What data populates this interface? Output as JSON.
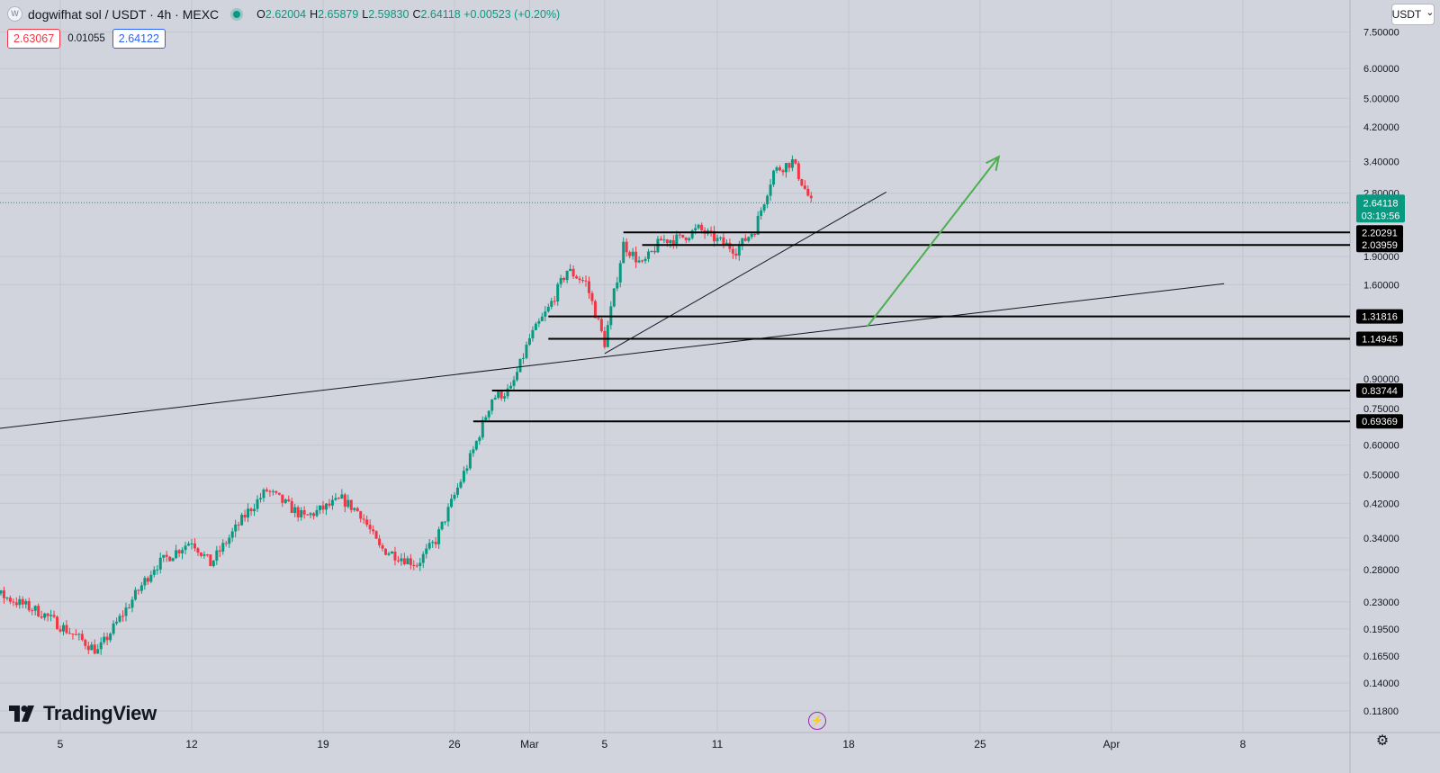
{
  "header": {
    "symbol_icon": "W",
    "title": "dogwifhat sol / USDT · 4h · MEXC",
    "ohlc": [
      {
        "key": "O",
        "value": "2.62004"
      },
      {
        "key": "H",
        "value": "2.65879"
      },
      {
        "key": "L",
        "value": "2.59830"
      },
      {
        "key": "C",
        "value": "2.64118 +0.00523 (+0.20%)"
      }
    ],
    "sell_price": "2.63067",
    "spread": "0.01055",
    "buy_price": "2.64122",
    "currency": "USDT",
    "live_color": "#089981"
  },
  "brand": {
    "name": "TradingView"
  },
  "icons": {
    "bolt": "⚡",
    "gear": "⚙",
    "chevron": "⌄"
  },
  "colors": {
    "up": "#089981",
    "down": "#f23645",
    "background": "#d1d4dc",
    "arrow": "#4caf50"
  },
  "chart_data": {
    "type": "candlestick",
    "scale": "log",
    "interval": "4h",
    "x_axis_labels": [
      {
        "label": "5",
        "date": "2024-02-05"
      },
      {
        "label": "12",
        "date": "2024-02-12"
      },
      {
        "label": "19",
        "date": "2024-02-19"
      },
      {
        "label": "26",
        "date": "2024-02-26"
      },
      {
        "label": "Mar",
        "date": "2024-03-01"
      },
      {
        "label": "5",
        "date": "2024-03-05"
      },
      {
        "label": "11",
        "date": "2024-03-11"
      },
      {
        "label": "18",
        "date": "2024-03-18"
      },
      {
        "label": "25",
        "date": "2024-03-25"
      },
      {
        "label": "Apr",
        "date": "2024-04-01"
      },
      {
        "label": "8",
        "date": "2024-04-08"
      }
    ],
    "y_axis_labels": [
      "7.50000",
      "6.00000",
      "5.00000",
      "4.20000",
      "3.40000",
      "2.80000",
      "1.90000",
      "1.60000",
      "0.90000",
      "0.75000",
      "0.60000",
      "0.50000",
      "0.42000",
      "0.34000",
      "0.28000",
      "0.23000",
      "0.19500",
      "0.16500",
      "0.14000",
      "0.11800"
    ],
    "current_price": {
      "value": 2.64118,
      "label": "2.64118",
      "countdown": "03:19:56"
    },
    "horizontal_levels": [
      {
        "value": 2.20291,
        "label": "2.20291",
        "from": "2024-03-06"
      },
      {
        "value": 2.03959,
        "label": "2.03959",
        "from": "2024-03-07"
      },
      {
        "value": 1.31816,
        "label": "1.31816",
        "from": "2024-03-02"
      },
      {
        "value": 1.14945,
        "label": "1.14945",
        "from": "2024-03-02"
      },
      {
        "value": 0.83744,
        "label": "0.83744",
        "from": "2024-02-28"
      },
      {
        "value": 0.69369,
        "label": "0.69369",
        "from": "2024-02-27"
      }
    ],
    "trendlines": [
      {
        "p1": {
          "date": "2024-01-30",
          "price": 0.64
        },
        "p2": {
          "date": "2024-04-07",
          "price": 1.61
        }
      },
      {
        "p1": {
          "date": "2024-03-05",
          "price": 1.05
        },
        "p2": {
          "date": "2024-03-20",
          "price": 2.82
        }
      }
    ],
    "arrow": {
      "from": {
        "date": "2024-03-19",
        "price": 1.24
      },
      "to": {
        "date": "2024-03-26",
        "price": 3.5
      }
    },
    "price_path": [
      {
        "date": "2024-01-30",
        "price": 0.245
      },
      {
        "date": "2024-02-01",
        "price": 0.25
      },
      {
        "date": "2024-02-04",
        "price": 0.215
      },
      {
        "date": "2024-02-07",
        "price": 0.17
      },
      {
        "date": "2024-02-10",
        "price": 0.285
      },
      {
        "date": "2024-02-12",
        "price": 0.335
      },
      {
        "date": "2024-02-13",
        "price": 0.29
      },
      {
        "date": "2024-02-15",
        "price": 0.4
      },
      {
        "date": "2024-02-16",
        "price": 0.455
      },
      {
        "date": "2024-02-18",
        "price": 0.385
      },
      {
        "date": "2024-02-20",
        "price": 0.43
      },
      {
        "date": "2024-02-21",
        "price": 0.395
      },
      {
        "date": "2024-02-22",
        "price": 0.32
      },
      {
        "date": "2024-02-24",
        "price": 0.29
      },
      {
        "date": "2024-02-25",
        "price": 0.335
      },
      {
        "date": "2024-02-27",
        "price": 0.58
      },
      {
        "date": "2024-02-28",
        "price": 0.8
      },
      {
        "date": "2024-02-29",
        "price": 0.84
      },
      {
        "date": "2024-03-01",
        "price": 1.15
      },
      {
        "date": "2024-03-02",
        "price": 1.38
      },
      {
        "date": "2024-03-03",
        "price": 1.75
      },
      {
        "date": "2024-03-04",
        "price": 1.62
      },
      {
        "date": "2024-03-05",
        "price": 1.12
      },
      {
        "date": "2024-03-06",
        "price": 2.05
      },
      {
        "date": "2024-03-07",
        "price": 1.8
      },
      {
        "date": "2024-03-08",
        "price": 2.1
      },
      {
        "date": "2024-03-09",
        "price": 2.12
      },
      {
        "date": "2024-03-10",
        "price": 2.25
      },
      {
        "date": "2024-03-11",
        "price": 2.1
      },
      {
        "date": "2024-03-12",
        "price": 1.98
      },
      {
        "date": "2024-03-13",
        "price": 2.25
      },
      {
        "date": "2024-03-14",
        "price": 3.2
      },
      {
        "date": "2024-03-15",
        "price": 3.4
      },
      {
        "date": "2024-03-16",
        "price": 2.64
      }
    ]
  }
}
